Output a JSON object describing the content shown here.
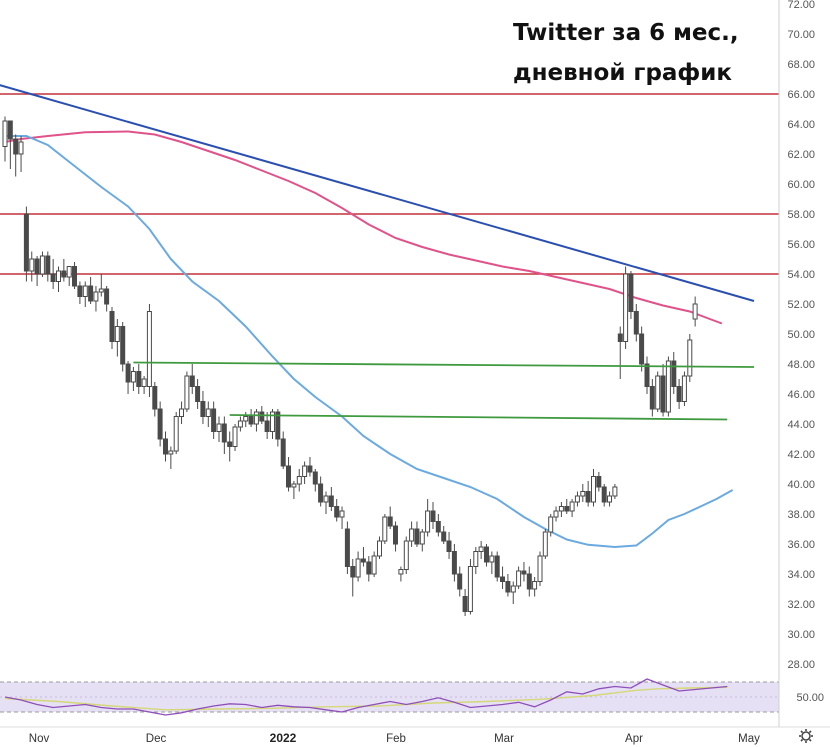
{
  "chart_data": {
    "type": "candlestick",
    "title_lines": [
      "Twitter за 6 мес.,",
      "дневной график"
    ],
    "y_axis": {
      "ticks": [
        "72.00",
        "70.00",
        "68.00",
        "66.00",
        "64.00",
        "62.00",
        "60.00",
        "58.00",
        "56.00",
        "54.00",
        "52.00",
        "50.00",
        "48.00",
        "46.00",
        "44.00",
        "42.00",
        "40.00",
        "38.00",
        "36.00",
        "34.00",
        "32.00",
        "30.00",
        "28.00"
      ],
      "ylim": [
        28,
        72
      ]
    },
    "x_axis": {
      "labels": [
        "Nov",
        "Dec",
        "2022",
        "Feb",
        "Mar",
        "Apr",
        "May"
      ],
      "bold_label": "2022"
    },
    "colors": {
      "candle": "#4a4a4a",
      "resistance": "#c0343c",
      "trendline": "#2a4fb0",
      "ma_long": "#e0528a",
      "ma_short": "#6aaae0",
      "support": "#3f9a3f",
      "rsi_band": "#e6e0f5",
      "rsi_line": "#8e4fb8",
      "rsi_signal": "#d4d878"
    },
    "horizontal_levels": [
      66,
      58,
      54
    ],
    "candles": [
      [
        62.5,
        64.5,
        61.5,
        64.2
      ],
      [
        64.2,
        64.0,
        61.0,
        63.0
      ],
      [
        63.0,
        63.3,
        60.5,
        62.0
      ],
      [
        62.0,
        63.2,
        60.8,
        62.8
      ],
      [
        58.0,
        58.5,
        53.5,
        54.2
      ],
      [
        54.2,
        55.5,
        53.5,
        55.0
      ],
      [
        55.0,
        55.2,
        53.2,
        54.0
      ],
      [
        54.0,
        55.5,
        53.8,
        55.2
      ],
      [
        55.2,
        55.5,
        53.5,
        54.0
      ],
      [
        54.0,
        55.0,
        53.0,
        53.5
      ],
      [
        53.5,
        54.5,
        52.8,
        54.2
      ],
      [
        54.2,
        55.0,
        53.5,
        53.8
      ],
      [
        53.8,
        54.5,
        53.2,
        54.5
      ],
      [
        54.5,
        54.8,
        53.0,
        53.2
      ],
      [
        53.2,
        53.5,
        52.0,
        52.5
      ],
      [
        52.5,
        53.5,
        51.8,
        53.2
      ],
      [
        53.2,
        53.8,
        52.0,
        52.2
      ],
      [
        52.2,
        53.2,
        51.5,
        52.8
      ],
      [
        52.8,
        54.0,
        52.5,
        53.0
      ],
      [
        53.0,
        53.2,
        51.5,
        52.0
      ],
      [
        51.5,
        51.8,
        49.0,
        49.5
      ],
      [
        49.5,
        51.0,
        48.5,
        50.5
      ],
      [
        50.5,
        50.8,
        47.5,
        48.0
      ],
      [
        48.0,
        48.2,
        46.0,
        46.8
      ],
      [
        46.8,
        47.8,
        46.2,
        47.5
      ],
      [
        47.5,
        48.0,
        46.0,
        46.5
      ],
      [
        46.5,
        47.2,
        46.0,
        47.0
      ],
      [
        46.5,
        52.0,
        45.8,
        51.5
      ],
      [
        46.5,
        46.8,
        44.5,
        45.0
      ],
      [
        45.0,
        45.5,
        42.5,
        43.0
      ],
      [
        43.0,
        43.5,
        41.5,
        42.0
      ],
      [
        42.0,
        42.5,
        41.0,
        42.2
      ],
      [
        42.2,
        44.8,
        42.0,
        44.5
      ],
      [
        44.5,
        45.5,
        44.0,
        45.0
      ],
      [
        45.0,
        47.5,
        44.8,
        47.2
      ],
      [
        47.2,
        48.0,
        46.0,
        46.5
      ],
      [
        46.5,
        47.0,
        45.0,
        45.5
      ],
      [
        45.5,
        46.2,
        44.0,
        44.5
      ],
      [
        44.5,
        45.5,
        43.8,
        45.0
      ],
      [
        45.0,
        45.5,
        43.0,
        43.5
      ],
      [
        43.5,
        44.5,
        42.8,
        44.0
      ],
      [
        44.0,
        44.5,
        42.0,
        42.8
      ],
      [
        42.8,
        43.5,
        41.5,
        42.5
      ],
      [
        42.5,
        44.0,
        42.2,
        43.8
      ],
      [
        43.8,
        44.5,
        43.5,
        44.2
      ],
      [
        44.2,
        44.8,
        43.8,
        44.5
      ],
      [
        44.5,
        45.0,
        43.8,
        44.0
      ],
      [
        44.0,
        45.0,
        43.5,
        44.8
      ],
      [
        44.8,
        45.2,
        44.0,
        44.2
      ],
      [
        44.2,
        44.8,
        43.0,
        43.5
      ],
      [
        43.5,
        45.0,
        43.0,
        44.8
      ],
      [
        44.8,
        45.0,
        42.5,
        43.0
      ],
      [
        43.0,
        43.5,
        41.0,
        41.2
      ],
      [
        41.2,
        41.8,
        39.5,
        39.8
      ],
      [
        39.8,
        40.2,
        39.0,
        40.0
      ],
      [
        40.0,
        41.0,
        39.5,
        40.5
      ],
      [
        40.5,
        41.5,
        40.0,
        41.2
      ],
      [
        41.2,
        41.8,
        40.5,
        40.8
      ],
      [
        40.8,
        41.0,
        39.5,
        40.0
      ],
      [
        40.0,
        40.5,
        38.5,
        38.8
      ],
      [
        38.8,
        39.5,
        38.0,
        39.2
      ],
      [
        39.2,
        39.8,
        38.2,
        38.5
      ],
      [
        38.5,
        39.0,
        37.5,
        37.8
      ],
      [
        37.8,
        38.5,
        37.0,
        38.2
      ],
      [
        37.0,
        37.5,
        34.0,
        34.5
      ],
      [
        34.5,
        35.0,
        32.5,
        33.8
      ],
      [
        33.8,
        35.5,
        33.5,
        35.0
      ],
      [
        35.0,
        35.8,
        34.5,
        34.8
      ],
      [
        34.8,
        35.2,
        33.5,
        34.0
      ],
      [
        34.0,
        35.5,
        33.8,
        35.2
      ],
      [
        35.2,
        36.5,
        35.0,
        36.2
      ],
      [
        36.2,
        38.0,
        36.0,
        37.8
      ],
      [
        37.8,
        38.5,
        37.0,
        37.2
      ],
      [
        37.2,
        37.5,
        35.5,
        36.0
      ],
      [
        34.0,
        34.5,
        33.5,
        34.3
      ],
      [
        34.3,
        36.5,
        34.0,
        36.2
      ],
      [
        36.2,
        37.5,
        35.8,
        37.0
      ],
      [
        37.0,
        37.5,
        35.8,
        36.0
      ],
      [
        36.0,
        37.0,
        35.5,
        36.8
      ],
      [
        36.8,
        39.0,
        36.5,
        38.2
      ],
      [
        38.2,
        38.8,
        37.0,
        37.5
      ],
      [
        37.5,
        38.0,
        36.5,
        36.8
      ],
      [
        36.8,
        37.2,
        36.0,
        36.2
      ],
      [
        36.2,
        36.8,
        35.0,
        35.5
      ],
      [
        35.5,
        36.0,
        33.5,
        34.0
      ],
      [
        34.0,
        34.5,
        32.5,
        33.0
      ],
      [
        32.5,
        33.0,
        31.2,
        31.5
      ],
      [
        31.5,
        35.0,
        31.3,
        34.5
      ],
      [
        34.5,
        35.8,
        34.0,
        35.5
      ],
      [
        35.5,
        36.2,
        35.0,
        35.8
      ],
      [
        35.8,
        36.0,
        34.5,
        34.8
      ],
      [
        34.8,
        35.5,
        34.0,
        35.2
      ],
      [
        35.2,
        35.5,
        33.5,
        33.8
      ],
      [
        33.8,
        34.5,
        33.0,
        33.5
      ],
      [
        33.5,
        34.0,
        32.5,
        32.8
      ],
      [
        32.8,
        33.5,
        32.0,
        33.2
      ],
      [
        33.2,
        34.5,
        33.0,
        34.2
      ],
      [
        34.2,
        34.8,
        33.5,
        34.0
      ],
      [
        34.0,
        34.5,
        32.5,
        33.0
      ],
      [
        33.0,
        33.8,
        32.5,
        33.5
      ],
      [
        33.5,
        35.5,
        33.2,
        35.2
      ],
      [
        35.2,
        37.0,
        35.0,
        36.8
      ],
      [
        36.8,
        38.0,
        36.5,
        37.8
      ],
      [
        37.8,
        38.5,
        37.5,
        38.2
      ],
      [
        38.2,
        38.8,
        37.8,
        38.5
      ],
      [
        38.5,
        39.0,
        38.0,
        38.2
      ],
      [
        38.2,
        39.0,
        37.8,
        38.8
      ],
      [
        38.8,
        39.5,
        38.5,
        39.2
      ],
      [
        39.2,
        40.0,
        38.8,
        39.5
      ],
      [
        39.5,
        40.2,
        38.5,
        38.8
      ],
      [
        38.8,
        41.0,
        38.5,
        40.5
      ],
      [
        40.5,
        40.8,
        39.5,
        39.8
      ],
      [
        39.8,
        40.0,
        38.5,
        38.8
      ],
      [
        38.8,
        39.5,
        38.5,
        39.2
      ],
      [
        39.2,
        40.0,
        39.0,
        39.8
      ],
      [
        50.0,
        50.5,
        47.0,
        49.5
      ],
      [
        49.5,
        54.5,
        49.0,
        54.0
      ],
      [
        54.0,
        54.2,
        51.0,
        51.5
      ],
      [
        51.5,
        52.0,
        49.5,
        50.0
      ],
      [
        50.0,
        50.5,
        47.5,
        48.0
      ],
      [
        48.0,
        48.5,
        46.0,
        46.5
      ],
      [
        46.5,
        47.0,
        44.5,
        45.0
      ],
      [
        45.0,
        47.5,
        44.8,
        47.2
      ],
      [
        47.2,
        48.0,
        44.5,
        44.8
      ],
      [
        44.8,
        48.5,
        44.5,
        48.2
      ],
      [
        48.2,
        48.8,
        46.0,
        46.5
      ],
      [
        46.5,
        47.0,
        45.0,
        45.5
      ],
      [
        45.5,
        47.5,
        45.2,
        47.2
      ],
      [
        47.2,
        50.0,
        46.8,
        49.6
      ],
      [
        51.0,
        52.5,
        50.5,
        52.0
      ]
    ],
    "ma_long_values": [
      [
        0,
        62.8
      ],
      [
        3,
        63.0
      ],
      [
        8,
        63.2
      ],
      [
        15,
        63.45
      ],
      [
        23,
        63.5
      ],
      [
        28,
        63.3
      ],
      [
        33,
        62.8
      ],
      [
        38,
        62.2
      ],
      [
        43,
        61.6
      ],
      [
        48,
        60.9
      ],
      [
        53,
        60.2
      ],
      [
        58,
        59.4
      ],
      [
        63,
        58.4
      ],
      [
        68,
        57.3
      ],
      [
        73,
        56.4
      ],
      [
        78,
        55.8
      ],
      [
        83,
        55.3
      ],
      [
        88,
        54.9
      ],
      [
        93,
        54.5
      ],
      [
        98,
        54.2
      ],
      [
        103,
        53.8
      ],
      [
        108,
        53.4
      ],
      [
        113,
        53.0
      ],
      [
        118,
        52.4
      ],
      [
        123,
        51.9
      ],
      [
        128,
        51.5
      ],
      [
        131,
        51.1
      ],
      [
        134,
        50.7
      ]
    ],
    "ma_short_values": [
      [
        0,
        63.2
      ],
      [
        4,
        63.2
      ],
      [
        8,
        62.6
      ],
      [
        13,
        61.2
      ],
      [
        18,
        59.8
      ],
      [
        23,
        58.5
      ],
      [
        27,
        57.0
      ],
      [
        31,
        55.0
      ],
      [
        35,
        53.5
      ],
      [
        40,
        52.2
      ],
      [
        45,
        50.5
      ],
      [
        50,
        48.5
      ],
      [
        54,
        47.0
      ],
      [
        58,
        45.8
      ],
      [
        63,
        44.5
      ],
      [
        67,
        43.2
      ],
      [
        72,
        42.0
      ],
      [
        77,
        41.0
      ],
      [
        82,
        40.4
      ],
      [
        87,
        39.8
      ],
      [
        92,
        39.0
      ],
      [
        97,
        37.8
      ],
      [
        101,
        37.0
      ],
      [
        105,
        36.3
      ],
      [
        109,
        35.95
      ],
      [
        114,
        35.8
      ],
      [
        118,
        35.9
      ],
      [
        121,
        36.7
      ],
      [
        124,
        37.6
      ],
      [
        127,
        38.0
      ],
      [
        130,
        38.5
      ],
      [
        133,
        39.0
      ],
      [
        136,
        39.6
      ]
    ],
    "trendline": [
      [
        -5,
        67.0
      ],
      [
        140,
        52.2
      ]
    ],
    "support_lines": [
      [
        [
          24,
          48.1
        ],
        [
          140,
          47.8
        ]
      ],
      [
        [
          42,
          44.6
        ],
        [
          135,
          44.3
        ]
      ]
    ],
    "rsi": {
      "ticks": [
        "50.00"
      ],
      "upper": 70,
      "lower": 30,
      "values": [
        [
          0,
          50
        ],
        [
          3,
          46
        ],
        [
          6,
          40
        ],
        [
          9,
          36
        ],
        [
          12,
          38
        ],
        [
          15,
          40
        ],
        [
          18,
          36
        ],
        [
          21,
          34
        ],
        [
          24,
          34
        ],
        [
          27,
          30
        ],
        [
          30,
          26
        ],
        [
          33,
          29
        ],
        [
          36,
          34
        ],
        [
          39,
          38
        ],
        [
          42,
          41
        ],
        [
          45,
          40
        ],
        [
          48,
          36
        ],
        [
          51,
          39
        ],
        [
          54,
          37
        ],
        [
          57,
          36
        ],
        [
          60,
          33
        ],
        [
          63,
          30
        ],
        [
          66,
          36
        ],
        [
          69,
          40
        ],
        [
          72,
          44
        ],
        [
          75,
          40
        ],
        [
          78,
          44
        ],
        [
          81,
          49
        ],
        [
          84,
          43
        ],
        [
          87,
          36
        ],
        [
          90,
          38
        ],
        [
          93,
          40
        ],
        [
          96,
          43
        ],
        [
          99,
          37
        ],
        [
          102,
          46
        ],
        [
          105,
          57
        ],
        [
          108,
          54
        ],
        [
          111,
          61
        ],
        [
          114,
          64
        ],
        [
          117,
          62
        ],
        [
          120,
          74
        ],
        [
          123,
          66
        ],
        [
          126,
          58
        ],
        [
          129,
          60
        ],
        [
          132,
          62
        ],
        [
          135,
          64
        ]
      ],
      "signal": [
        [
          0,
          48
        ],
        [
          10,
          44
        ],
        [
          20,
          38
        ],
        [
          30,
          33
        ],
        [
          40,
          34
        ],
        [
          50,
          35
        ],
        [
          60,
          37
        ],
        [
          70,
          38
        ],
        [
          80,
          42
        ],
        [
          90,
          44
        ],
        [
          100,
          47
        ],
        [
          110,
          52
        ],
        [
          118,
          59
        ],
        [
          122,
          61
        ],
        [
          128,
          62
        ],
        [
          135,
          63
        ]
      ]
    }
  }
}
